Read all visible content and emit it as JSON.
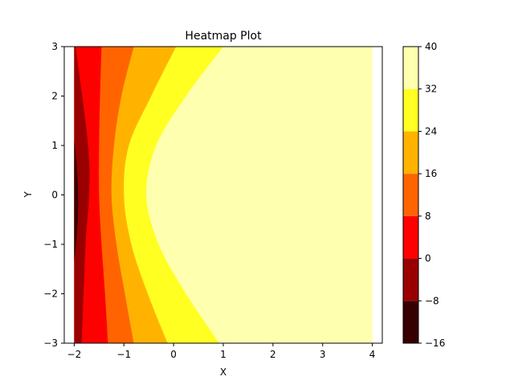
{
  "chart_data": {
    "type": "heatmap",
    "style": "filled-contour",
    "title": "Heatmap Plot",
    "xlabel": "X",
    "ylabel": "Y",
    "xlim": [
      -2.2,
      4.2
    ],
    "ylim": [
      -3,
      3
    ],
    "data_x_range": [
      -2,
      4
    ],
    "xticks": [
      -2,
      -1,
      0,
      1,
      2,
      3,
      4
    ],
    "xtick_labels": [
      "−2",
      "−1",
      "0",
      "1",
      "2",
      "3",
      "4"
    ],
    "yticks": [
      -3,
      -2,
      -1,
      0,
      1,
      2,
      3
    ],
    "ytick_labels": [
      "−3",
      "−2",
      "−1",
      "0",
      "1",
      "2",
      "3"
    ],
    "grid": false,
    "colorbar": {
      "levels": [
        -16,
        -8,
        0,
        8,
        16,
        24,
        32,
        40
      ],
      "tick_labels": [
        "−16",
        "−8",
        "0",
        "8",
        "16",
        "24",
        "32",
        "40"
      ],
      "colors": [
        "#360000",
        "#9a0000",
        "#ff0000",
        "#ff6400",
        "#ffb300",
        "#ffff22",
        "#ffffb0"
      ]
    },
    "boundaries": [
      {
        "level": -8,
        "vertex_x": -1.92,
        "yrange": [
          -1.35,
          1.1
        ]
      },
      {
        "level": 0,
        "points": [
          [
            -1.97,
            3
          ],
          [
            -1.72,
            1.0
          ],
          [
            -1.7,
            0
          ],
          [
            -1.77,
            -1.0
          ],
          [
            -1.85,
            -3
          ]
        ]
      },
      {
        "level": 8,
        "points": [
          [
            -1.45,
            3
          ],
          [
            -1.48,
            2.0
          ],
          [
            -1.5,
            1.0
          ],
          [
            -1.5,
            0
          ],
          [
            -1.45,
            -1.0
          ],
          [
            -1.38,
            -2.0
          ],
          [
            -1.32,
            -3
          ]
        ]
      },
      {
        "level": 16,
        "points": [
          [
            -0.8,
            3
          ],
          [
            -1.05,
            2.0
          ],
          [
            -1.2,
            1.0
          ],
          [
            -1.25,
            0
          ],
          [
            -1.15,
            -1.0
          ],
          [
            -0.98,
            -2.0
          ],
          [
            -0.8,
            -3
          ]
        ]
      },
      {
        "level": 24,
        "points": [
          [
            0.05,
            3
          ],
          [
            -0.45,
            2.0
          ],
          [
            -0.9,
            1.0
          ],
          [
            -1.0,
            0
          ],
          [
            -0.85,
            -1.0
          ],
          [
            -0.52,
            -2.0
          ],
          [
            -0.12,
            -3
          ]
        ]
      },
      {
        "level": 32,
        "points": [
          [
            1.0,
            3
          ],
          [
            0.25,
            2.0
          ],
          [
            -0.35,
            1.0
          ],
          [
            -0.55,
            0
          ],
          [
            -0.3,
            -1.0
          ],
          [
            0.25,
            -2.0
          ],
          [
            0.92,
            -3
          ]
        ]
      }
    ]
  }
}
